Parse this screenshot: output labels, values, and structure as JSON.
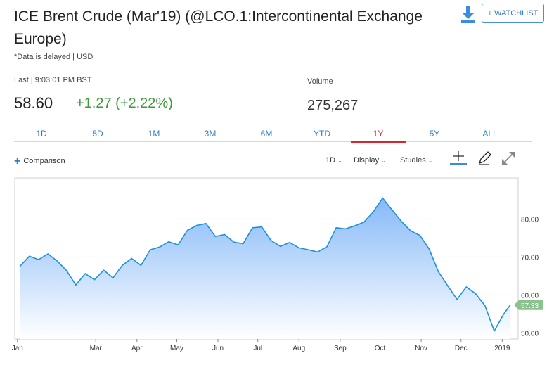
{
  "header": {
    "title": "ICE Brent Crude (Mar'19) (@LCO.1:Intercontinental Exchange Europe)",
    "delayed_note": "*Data is delayed | USD",
    "watchlist_label": "+ WATCHLIST",
    "download_icon": "download-icon"
  },
  "quote": {
    "last_label": "Last | 9:03:01 PM BST",
    "last_price": "58.60",
    "change": "+1.27 (+2.22%)",
    "volume_label": "Volume",
    "volume_value": "275,267",
    "change_color": "#3b9b3b"
  },
  "tabs": [
    {
      "label": "1D",
      "active": false
    },
    {
      "label": "5D",
      "active": false
    },
    {
      "label": "1M",
      "active": false
    },
    {
      "label": "3M",
      "active": false
    },
    {
      "label": "6M",
      "active": false
    },
    {
      "label": "YTD",
      "active": false
    },
    {
      "label": "1Y",
      "active": true
    },
    {
      "label": "5Y",
      "active": false
    },
    {
      "label": "ALL",
      "active": false
    }
  ],
  "toolbar": {
    "comparison_label": "Comparison",
    "interval_label": "1D",
    "display_label": "Display",
    "studies_label": "Studies",
    "icons": [
      "crosshair-icon",
      "draw-pencil-icon",
      "fullscreen-icon"
    ]
  },
  "chart_data": {
    "type": "area",
    "x": [
      "2018-01-03",
      "2018-01-10",
      "2018-01-17",
      "2018-01-24",
      "2018-01-31",
      "2018-02-07",
      "2018-02-14",
      "2018-02-21",
      "2018-02-28",
      "2018-03-07",
      "2018-03-14",
      "2018-03-21",
      "2018-03-28",
      "2018-04-04",
      "2018-04-11",
      "2018-04-18",
      "2018-04-25",
      "2018-05-02",
      "2018-05-09",
      "2018-05-16",
      "2018-05-23",
      "2018-05-30",
      "2018-06-06",
      "2018-06-13",
      "2018-06-20",
      "2018-06-27",
      "2018-07-04",
      "2018-07-11",
      "2018-07-18",
      "2018-07-25",
      "2018-08-01",
      "2018-08-08",
      "2018-08-15",
      "2018-08-22",
      "2018-08-29",
      "2018-09-05",
      "2018-09-12",
      "2018-09-19",
      "2018-09-26",
      "2018-10-03",
      "2018-10-10",
      "2018-10-17",
      "2018-10-24",
      "2018-10-31",
      "2018-11-07",
      "2018-11-14",
      "2018-11-21",
      "2018-11-28",
      "2018-12-05",
      "2018-12-12",
      "2018-12-19",
      "2018-12-26",
      "2019-01-02",
      "2019-01-07"
    ],
    "values": [
      67.6,
      70.2,
      69.3,
      70.8,
      68.9,
      66.4,
      62.6,
      65.6,
      64.0,
      66.5,
      64.5,
      67.8,
      69.6,
      67.8,
      71.9,
      72.6,
      74.0,
      73.2,
      77.0,
      78.3,
      78.8,
      75.4,
      75.9,
      73.9,
      73.5,
      77.7,
      77.9,
      74.3,
      72.8,
      73.8,
      72.4,
      71.9,
      71.3,
      72.7,
      77.7,
      77.4,
      78.2,
      79.2,
      81.9,
      85.5,
      82.4,
      79.4,
      76.9,
      75.7,
      72.1,
      66.1,
      62.4,
      58.8,
      62.1,
      60.3,
      57.2,
      50.5,
      54.9,
      57.33
    ],
    "last_value_label": "57.33",
    "y_ticks": [
      "50.00",
      "60.00",
      "70.00",
      "80.00"
    ],
    "x_ticks": [
      "Jan",
      "Mar",
      "Apr",
      "May",
      "Jun",
      "Jul",
      "Aug",
      "Sep",
      "Oct",
      "Nov",
      "Dec",
      "2019"
    ],
    "ylim": [
      48.4,
      90.8
    ],
    "grid": true,
    "line_color": "#1c93d8",
    "fill_top_color": "#86b9f7",
    "fill_bottom_color": "#ffffff",
    "last_badge_color": "#8bc38f"
  }
}
